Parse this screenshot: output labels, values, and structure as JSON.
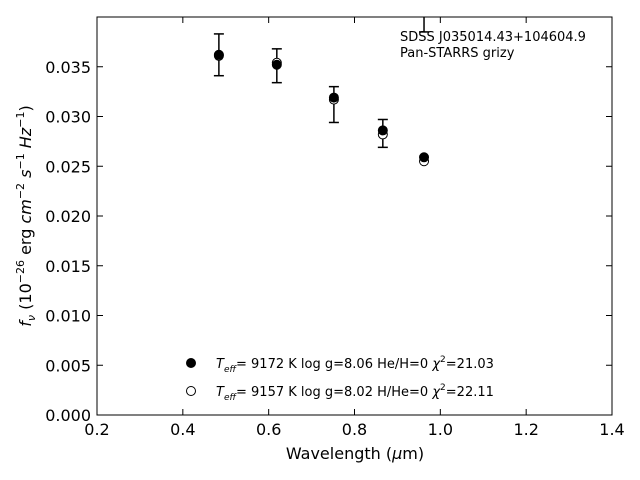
{
  "chart_data": {
    "type": "scatter",
    "title": "",
    "xlabel": "Wavelength (μm)",
    "ylabel": "f_ν (10^-26 erg cm^-2 s^-1 Hz^-1)",
    "xlim": [
      0.2,
      1.4
    ],
    "ylim": [
      0.0,
      0.04
    ],
    "xticks": [
      0.2,
      0.4,
      0.6,
      0.8,
      1.0,
      1.2,
      1.4
    ],
    "xtick_labels": [
      "0.2",
      "0.4",
      "0.6",
      "0.8",
      "1.0",
      "1.2",
      "1.4"
    ],
    "yticks": [
      0.0,
      0.005,
      0.01,
      0.015,
      0.02,
      0.025,
      0.03,
      0.035
    ],
    "ytick_labels": [
      "0.000",
      "0.005",
      "0.010",
      "0.015",
      "0.020",
      "0.025",
      "0.030",
      "0.035"
    ],
    "grid": false,
    "annotation": {
      "line1": "SDSS J035014.43+104604.9",
      "line2": "Pan-STARRS grizy"
    },
    "observed": {
      "x": [
        0.484,
        0.619,
        0.752,
        0.866,
        0.962
      ],
      "y": [
        0.0362,
        0.0351,
        0.0312,
        0.0283,
        0.0405
      ],
      "yerr": [
        0.0021,
        0.0017,
        0.0018,
        0.0014,
        0.002
      ]
    },
    "series": [
      {
        "name": "T_eff= 9172 K log g=8.06 He/H=0 χ²=21.03",
        "marker": "filled-circle",
        "x": [
          0.484,
          0.619,
          0.752,
          0.866,
          0.962
        ],
        "y": [
          0.0362,
          0.0352,
          0.0319,
          0.0286,
          0.0259
        ]
      },
      {
        "name": "T_eff= 9157 K log g=8.02 H/He=0 χ²=22.11",
        "marker": "open-circle",
        "x": [
          0.484,
          0.619,
          0.752,
          0.866,
          0.962
        ],
        "y": [
          0.0361,
          0.0354,
          0.0317,
          0.0282,
          0.0255
        ]
      }
    ],
    "legend": {
      "placement": "lower-center",
      "entries": [
        {
          "teff_value": "9172 K",
          "logg": "log g=8.06",
          "comp": "He/H=0",
          "chi2": "=21.03"
        },
        {
          "teff_value": "9157 K",
          "logg": "log g=8.02",
          "comp": "H/He=0",
          "chi2": "=22.11"
        }
      ]
    }
  }
}
